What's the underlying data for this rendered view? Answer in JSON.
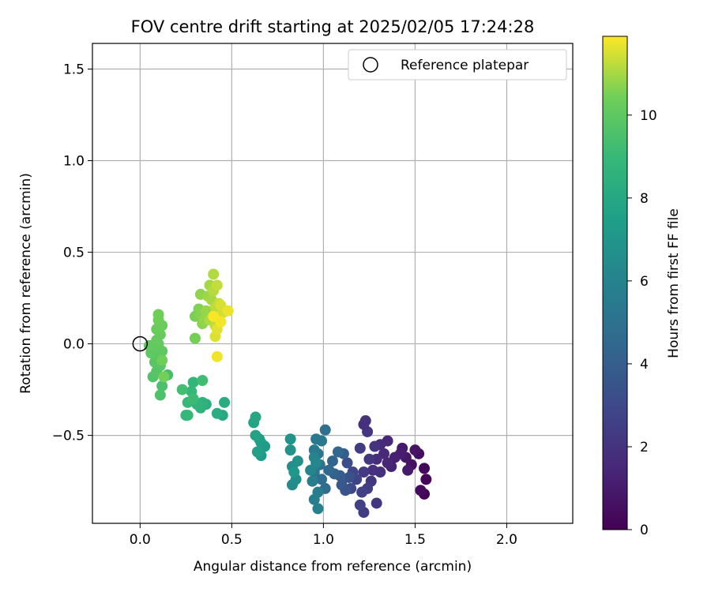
{
  "chart_data": {
    "type": "scatter",
    "title": "FOV centre drift starting at 2025/02/05 17:24:28",
    "xlabel": "Angular distance from reference (arcmin)",
    "ylabel": "Rotation from reference (arcmin)",
    "xlim": [
      -0.26,
      2.36
    ],
    "ylim": [
      -0.98,
      1.64
    ],
    "x_ticks": [
      0.0,
      0.5,
      1.0,
      1.5,
      2.0
    ],
    "x_tick_labels": [
      "0.0",
      "0.5",
      "1.0",
      "1.5",
      "2.0"
    ],
    "y_ticks": [
      -0.5,
      0.0,
      0.5,
      1.0,
      1.5
    ],
    "y_tick_labels": [
      "−0.5",
      "0.0",
      "0.5",
      "1.0",
      "1.5"
    ],
    "grid": true,
    "legend": {
      "placement": "upper-right",
      "entries": [
        "Reference platepar"
      ]
    },
    "reference_point": {
      "x": 0.0,
      "y": 0.0,
      "marker": "open-circle"
    },
    "colorbar": {
      "label": "Hours from first FF file",
      "colormap": "viridis",
      "range": [
        0,
        11.9
      ],
      "ticks": [
        0,
        2,
        4,
        6,
        8,
        10
      ],
      "tick_labels": [
        "0",
        "2",
        "4",
        "6",
        "8",
        "10"
      ]
    },
    "series": [
      {
        "name": "",
        "points": [
          [
            1.55,
            -0.82,
            0.1
          ],
          [
            1.56,
            -0.74,
            0.2
          ],
          [
            1.55,
            -0.68,
            0.3
          ],
          [
            1.53,
            -0.8,
            0.35
          ],
          [
            1.52,
            -0.6,
            0.45
          ],
          [
            1.48,
            -0.66,
            0.6
          ],
          [
            1.5,
            -0.58,
            0.7
          ],
          [
            1.45,
            -0.62,
            0.8
          ],
          [
            1.46,
            -0.69,
            0.9
          ],
          [
            1.43,
            -0.57,
            1.0
          ],
          [
            1.42,
            -0.6,
            1.1
          ],
          [
            1.39,
            -0.62,
            1.2
          ],
          [
            1.37,
            -0.67,
            1.3
          ],
          [
            1.35,
            -0.65,
            1.4
          ],
          [
            1.33,
            -0.6,
            1.5
          ],
          [
            1.35,
            -0.53,
            1.5
          ],
          [
            1.31,
            -0.55,
            1.6
          ],
          [
            1.29,
            -0.63,
            1.7
          ],
          [
            1.31,
            -0.7,
            1.8
          ],
          [
            1.27,
            -0.69,
            1.9
          ],
          [
            1.28,
            -0.56,
            2.0
          ],
          [
            1.25,
            -0.63,
            2.1
          ],
          [
            1.24,
            -0.48,
            2.1
          ],
          [
            1.23,
            -0.42,
            2.0
          ],
          [
            1.22,
            -0.44,
            1.9
          ],
          [
            1.26,
            -0.75,
            2.2
          ],
          [
            1.22,
            -0.7,
            2.3
          ],
          [
            1.2,
            -0.57,
            2.4
          ],
          [
            1.24,
            -0.79,
            2.5
          ],
          [
            1.21,
            -0.81,
            2.6
          ],
          [
            1.18,
            -0.74,
            2.7
          ],
          [
            1.16,
            -0.7,
            2.9
          ],
          [
            1.29,
            -0.87,
            2.2
          ],
          [
            1.22,
            -0.92,
            2.4
          ],
          [
            1.2,
            -0.88,
            2.6
          ],
          [
            1.15,
            -0.79,
            3.0
          ],
          [
            1.13,
            -0.65,
            3.2
          ],
          [
            1.14,
            -0.73,
            3.4
          ],
          [
            1.12,
            -0.8,
            3.5
          ],
          [
            1.1,
            -0.77,
            3.7
          ],
          [
            1.09,
            -0.72,
            3.9
          ],
          [
            1.11,
            -0.6,
            4.0
          ],
          [
            1.06,
            -0.71,
            4.2
          ],
          [
            1.05,
            -0.64,
            4.3
          ],
          [
            1.08,
            -0.59,
            4.4
          ],
          [
            1.03,
            -0.69,
            4.5
          ],
          [
            1.01,
            -0.79,
            4.7
          ],
          [
            0.99,
            -0.74,
            4.8
          ],
          [
            1.01,
            -0.47,
            4.9
          ],
          [
            0.98,
            -0.66,
            5.0
          ],
          [
            0.97,
            -0.6,
            5.1
          ],
          [
            0.95,
            -0.7,
            5.2
          ],
          [
            0.99,
            -0.53,
            5.3
          ],
          [
            0.96,
            -0.52,
            5.4
          ],
          [
            0.95,
            -0.58,
            5.5
          ],
          [
            0.97,
            -0.81,
            5.6
          ],
          [
            0.94,
            -0.75,
            5.7
          ],
          [
            0.95,
            -0.85,
            5.8
          ],
          [
            0.97,
            -0.9,
            5.9
          ],
          [
            0.95,
            -0.62,
            6.0
          ],
          [
            0.93,
            -0.69,
            6.1
          ],
          [
            0.96,
            -0.65,
            6.2
          ],
          [
            0.83,
            -0.77,
            6.4
          ],
          [
            0.85,
            -0.74,
            6.5
          ],
          [
            0.83,
            -0.67,
            6.6
          ],
          [
            0.86,
            -0.64,
            6.7
          ],
          [
            0.82,
            -0.58,
            6.8
          ],
          [
            0.82,
            -0.52,
            6.9
          ],
          [
            0.84,
            -0.7,
            7.0
          ],
          [
            0.66,
            -0.61,
            7.2
          ],
          [
            0.68,
            -0.56,
            7.3
          ],
          [
            0.66,
            -0.54,
            7.4
          ],
          [
            0.65,
            -0.52,
            7.5
          ],
          [
            0.64,
            -0.59,
            7.6
          ],
          [
            0.63,
            -0.5,
            7.7
          ],
          [
            0.62,
            -0.43,
            7.8
          ],
          [
            0.63,
            -0.4,
            7.9
          ],
          [
            0.45,
            -0.39,
            8.1
          ],
          [
            0.46,
            -0.32,
            8.2
          ],
          [
            0.42,
            -0.38,
            8.3
          ],
          [
            0.36,
            -0.33,
            8.4
          ],
          [
            0.34,
            -0.32,
            8.5
          ],
          [
            0.33,
            -0.35,
            8.6
          ],
          [
            0.31,
            -0.33,
            8.7
          ],
          [
            0.29,
            -0.21,
            8.8
          ],
          [
            0.28,
            -0.26,
            8.9
          ],
          [
            0.26,
            -0.32,
            9.0
          ],
          [
            0.29,
            -0.3,
            9.1
          ],
          [
            0.34,
            -0.2,
            9.2
          ],
          [
            0.26,
            -0.39,
            9.0
          ],
          [
            0.25,
            -0.39,
            8.9
          ],
          [
            0.23,
            -0.25,
            9.3
          ],
          [
            0.15,
            -0.17,
            9.4
          ],
          [
            0.12,
            -0.23,
            9.5
          ],
          [
            0.11,
            -0.28,
            9.6
          ],
          [
            0.07,
            -0.18,
            9.7
          ],
          [
            0.09,
            -0.15,
            9.8
          ],
          [
            0.11,
            -0.12,
            9.8
          ],
          [
            0.08,
            -0.1,
            9.9
          ],
          [
            0.1,
            -0.06,
            9.9
          ],
          [
            0.12,
            -0.04,
            10.0
          ],
          [
            0.06,
            -0.05,
            10.0
          ],
          [
            0.08,
            -0.02,
            10.05
          ],
          [
            0.05,
            -0.01,
            10.1
          ],
          [
            0.1,
            0.0,
            10.1
          ],
          [
            0.09,
            0.02,
            10.15
          ],
          [
            0.11,
            0.05,
            10.2
          ],
          [
            0.09,
            0.08,
            10.25
          ],
          [
            0.12,
            0.1,
            10.3
          ],
          [
            0.1,
            0.13,
            10.35
          ],
          [
            0.1,
            0.16,
            10.4
          ],
          [
            0.12,
            -0.09,
            10.4
          ],
          [
            0.13,
            -0.18,
            10.45
          ],
          [
            0.3,
            0.03,
            10.5
          ],
          [
            0.3,
            0.15,
            10.55
          ],
          [
            0.32,
            0.19,
            10.6
          ],
          [
            0.33,
            0.16,
            10.65
          ],
          [
            0.34,
            0.11,
            10.7
          ],
          [
            0.33,
            0.27,
            10.75
          ],
          [
            0.35,
            0.13,
            10.8
          ],
          [
            0.36,
            0.18,
            10.85
          ],
          [
            0.37,
            0.26,
            10.9
          ],
          [
            0.38,
            0.32,
            10.95
          ],
          [
            0.39,
            0.24,
            11.0
          ],
          [
            0.38,
            0.13,
            11.05
          ],
          [
            0.4,
            0.38,
            11.1
          ],
          [
            0.4,
            0.29,
            11.15
          ],
          [
            0.41,
            0.2,
            11.2
          ],
          [
            0.41,
            0.1,
            11.25
          ],
          [
            0.42,
            0.32,
            11.3
          ],
          [
            0.43,
            0.22,
            11.35
          ],
          [
            0.43,
            0.14,
            11.4
          ],
          [
            0.45,
            0.17,
            11.45
          ],
          [
            0.44,
            0.21,
            11.5
          ],
          [
            0.41,
            0.04,
            11.55
          ],
          [
            0.42,
            0.08,
            11.6
          ],
          [
            0.48,
            0.18,
            11.7
          ],
          [
            0.42,
            -0.07,
            11.75
          ],
          [
            0.44,
            0.12,
            11.8
          ],
          [
            0.4,
            0.15,
            11.85
          ]
        ]
      }
    ]
  }
}
